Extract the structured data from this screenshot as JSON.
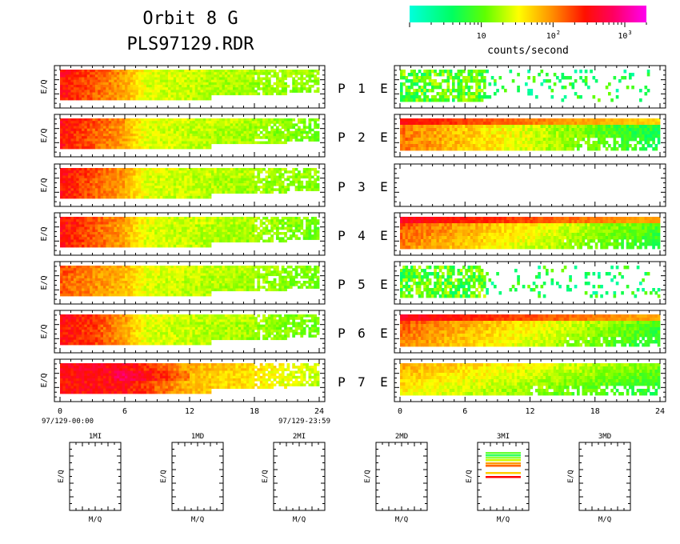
{
  "title_line1": "Orbit 8 G",
  "title_line2": "PLS97129.RDR",
  "colorbar": {
    "label": "counts/second",
    "ticks": [
      {
        "base": "10",
        "exp": "",
        "value": 10
      },
      {
        "base": "10",
        "exp": "2",
        "value": 100
      },
      {
        "base": "10",
        "exp": "3",
        "value": 1000
      }
    ],
    "range": [
      1,
      2000
    ],
    "scale": "log",
    "colors": [
      "#00ffdd",
      "#00ff40",
      "#c0ff00",
      "#ffff00",
      "#ff8000",
      "#ff0000",
      "#ff00e0"
    ]
  },
  "ylabel": "E/Q",
  "x_ticks": [
    "0",
    "6",
    "12",
    "18",
    "24"
  ],
  "x_date_start": "97/129-00:00",
  "x_date_end": "97/129-23:59",
  "rows": [
    {
      "p": "P",
      "num": "1",
      "e": "E"
    },
    {
      "p": "P",
      "num": "2",
      "e": "E"
    },
    {
      "p": "P",
      "num": "3",
      "e": "E"
    },
    {
      "p": "P",
      "num": "4",
      "e": "E"
    },
    {
      "p": "P",
      "num": "5",
      "e": "E"
    },
    {
      "p": "P",
      "num": "6",
      "e": "E"
    },
    {
      "p": "P",
      "num": "7",
      "e": "E"
    }
  ],
  "mass_panels": [
    {
      "title": "1MI",
      "ylabel": "E/Q",
      "xlabel": "M/Q"
    },
    {
      "title": "1MD",
      "ylabel": "E/Q",
      "xlabel": "M/Q"
    },
    {
      "title": "2MI",
      "ylabel": "E/Q",
      "xlabel": "M/Q"
    },
    {
      "title": "2MD",
      "ylabel": "E/Q",
      "xlabel": "M/Q"
    },
    {
      "title": "3MI",
      "ylabel": "E/Q",
      "xlabel": "M/Q"
    },
    {
      "title": "3MD",
      "ylabel": "E/Q",
      "xlabel": "M/Q"
    }
  ],
  "chart_data": {
    "type": "heatmap",
    "x_unit_hours": [
      0,
      24
    ],
    "ion_panels": [
      {
        "id": "P1",
        "level_profile_hours": [
          0,
          3,
          6,
          8,
          12,
          18,
          24
        ],
        "log_counts": [
          2.5,
          2.2,
          1.9,
          1.4,
          1.3,
          1.2,
          1.1
        ]
      },
      {
        "id": "P2",
        "level_profile_hours": [
          0,
          3,
          6,
          8,
          12,
          18,
          24
        ],
        "log_counts": [
          2.5,
          2.2,
          1.9,
          1.4,
          1.3,
          1.2,
          1.0
        ]
      },
      {
        "id": "P3",
        "level_profile_hours": [
          0,
          3,
          6,
          8,
          12,
          18,
          24
        ],
        "log_counts": [
          2.5,
          2.2,
          1.9,
          1.4,
          1.3,
          1.2,
          1.1
        ]
      },
      {
        "id": "P4",
        "level_profile_hours": [
          0,
          3,
          6,
          8,
          12,
          18,
          24
        ],
        "log_counts": [
          2.5,
          2.2,
          1.9,
          1.4,
          1.3,
          1.2,
          1.0
        ]
      },
      {
        "id": "P5",
        "level_profile_hours": [
          0,
          3,
          6,
          8,
          12,
          18,
          24
        ],
        "log_counts": [
          2.2,
          2.0,
          1.8,
          1.4,
          1.3,
          1.2,
          1.0
        ]
      },
      {
        "id": "P6",
        "level_profile_hours": [
          0,
          3,
          6,
          8,
          12,
          18,
          24
        ],
        "log_counts": [
          2.5,
          2.3,
          1.9,
          1.4,
          1.3,
          1.2,
          1.0
        ]
      },
      {
        "id": "P7",
        "level_profile_hours": [
          0,
          3,
          6,
          8,
          12,
          18,
          24
        ],
        "log_counts": [
          2.5,
          2.5,
          2.5,
          2.3,
          1.8,
          1.6,
          1.3
        ]
      }
    ],
    "electron_panels": [
      {
        "id": "E1",
        "level": "low",
        "log_counts": 0.9,
        "coverage_end_hours": 23
      },
      {
        "id": "E2",
        "level": "mixed",
        "log_counts": 1.6,
        "coverage_end_hours": 24
      },
      {
        "id": "E3",
        "level": "none",
        "log_counts": 0,
        "coverage_end_hours": 0
      },
      {
        "id": "E4",
        "level": "high",
        "log_counts": 2.0,
        "coverage_end_hours": 24
      },
      {
        "id": "E5",
        "level": "low",
        "log_counts": 1.2,
        "coverage_end_hours": 24
      },
      {
        "id": "E6",
        "level": "high",
        "log_counts": 1.9,
        "coverage_end_hours": 24
      },
      {
        "id": "E7",
        "level": "medium",
        "log_counts": 1.5,
        "coverage_end_hours": 24
      }
    ],
    "mass_panel_3MI_lines": [
      "#66ff33",
      "#33ff66",
      "#99ff33",
      "#ccff00",
      "#ff9900",
      "#ff6600",
      "#ffcc00",
      "#ff0000"
    ]
  }
}
